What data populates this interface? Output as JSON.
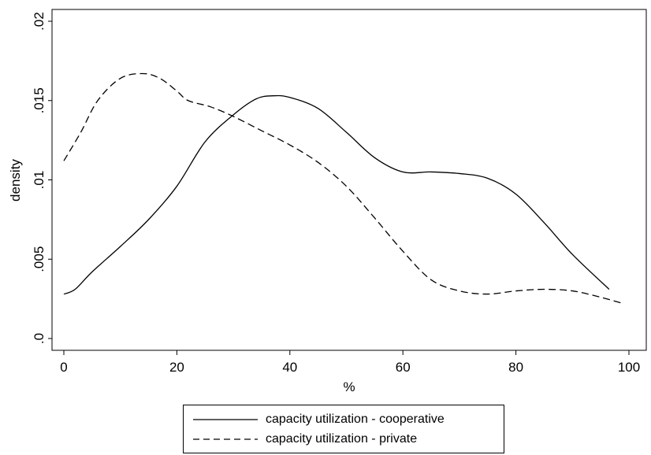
{
  "chart_data": {
    "type": "line",
    "xlabel": "%",
    "ylabel": "density",
    "xlim": [
      0,
      100
    ],
    "ylim": [
      0,
      0.02
    ],
    "xticks": [
      0,
      20,
      40,
      60,
      80,
      100
    ],
    "xtick_labels": [
      "0",
      "20",
      "40",
      "60",
      "80",
      "100"
    ],
    "yticks": [
      0,
      0.005,
      0.01,
      0.015,
      0.02
    ],
    "ytick_labels": [
      ".0",
      ".005",
      ".01",
      ".015",
      ".02"
    ],
    "grid": false,
    "legend_position": "bottom",
    "series": [
      {
        "name": "capacity utilization - cooperative",
        "line_style": "solid",
        "color": "#000000",
        "x": [
          0,
          2,
          5,
          10,
          15,
          20,
          25,
          30,
          34,
          37,
          40,
          45,
          50,
          55,
          60,
          65,
          70,
          75,
          80,
          85,
          90,
          96.5
        ],
        "y": [
          0.0028,
          0.0031,
          0.0042,
          0.0058,
          0.0075,
          0.0096,
          0.0124,
          0.0141,
          0.0151,
          0.0153,
          0.0152,
          0.0145,
          0.013,
          0.0114,
          0.0105,
          0.0105,
          0.0104,
          0.0101,
          0.0091,
          0.0073,
          0.0053,
          0.0031
        ]
      },
      {
        "name": "capacity utilization - private",
        "line_style": "dashed",
        "color": "#000000",
        "x": [
          0,
          3,
          6,
          10,
          14,
          17,
          20,
          22,
          26,
          30,
          35,
          40,
          45,
          50,
          55,
          60,
          65,
          70,
          75,
          80,
          85,
          90,
          95,
          99
        ],
        "y": [
          0.0112,
          0.013,
          0.015,
          0.0164,
          0.0167,
          0.0164,
          0.0156,
          0.015,
          0.0146,
          0.014,
          0.0131,
          0.0122,
          0.0111,
          0.0096,
          0.0076,
          0.0055,
          0.0037,
          0.003,
          0.0028,
          0.003,
          0.0031,
          0.003,
          0.0026,
          0.0022
        ]
      }
    ]
  }
}
